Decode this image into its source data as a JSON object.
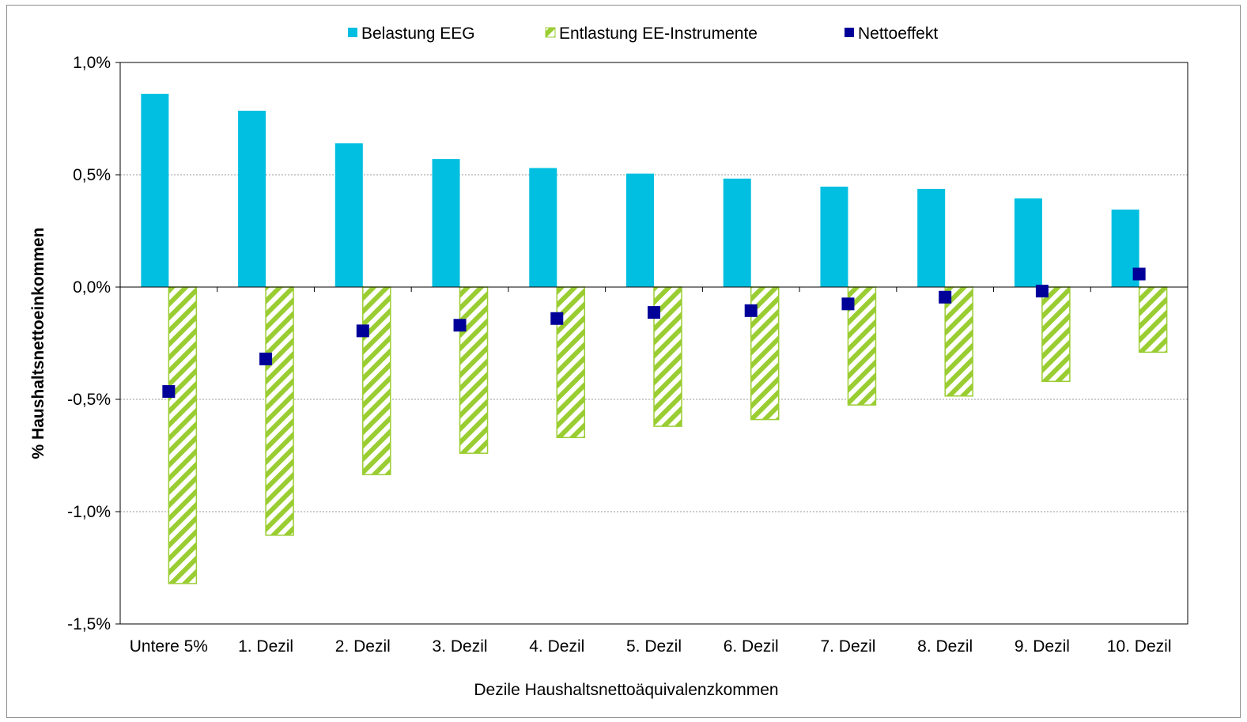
{
  "chart_data": {
    "type": "bar",
    "title": "",
    "xlabel": "Dezile Haushaltsnettoäquivalenzkommen",
    "ylabel": "% Haushaltsnettoeinkommen",
    "categories": [
      "Untere 5%",
      "1. Dezil",
      "2. Dezil",
      "3. Dezil",
      "4. Dezil",
      "5. Dezil",
      "6. Dezil",
      "7. Dezil",
      "8. Dezil",
      "9. Dezil",
      "10. Dezil"
    ],
    "series": [
      {
        "name": "Belastung EEG",
        "kind": "bar",
        "color": "#00BFE0",
        "values": [
          0.86,
          0.785,
          0.64,
          0.57,
          0.53,
          0.505,
          0.483,
          0.447,
          0.437,
          0.395,
          0.345
        ]
      },
      {
        "name": "Entlastung EE-Instrumente",
        "kind": "bar-hatched",
        "color": "#9ACD32",
        "values": [
          -1.32,
          -1.105,
          -0.835,
          -0.74,
          -0.67,
          -0.62,
          -0.59,
          -0.525,
          -0.485,
          -0.42,
          -0.29
        ]
      },
      {
        "name": "Nettoeffekt",
        "kind": "marker",
        "color": "#000099",
        "values": [
          -0.465,
          -0.32,
          -0.195,
          -0.17,
          -0.14,
          -0.113,
          -0.105,
          -0.075,
          -0.045,
          -0.018,
          0.058
        ]
      }
    ],
    "yticks": [
      1.0,
      0.5,
      0.0,
      -0.5,
      -1.0,
      -1.5
    ],
    "ytick_labels": [
      "1,0%",
      "0,5%",
      "0,0%",
      "-0,5%",
      "-1,0%",
      "-1,5%"
    ],
    "ylim": [
      -1.5,
      1.0
    ],
    "grid": true,
    "legend_position": "top"
  }
}
